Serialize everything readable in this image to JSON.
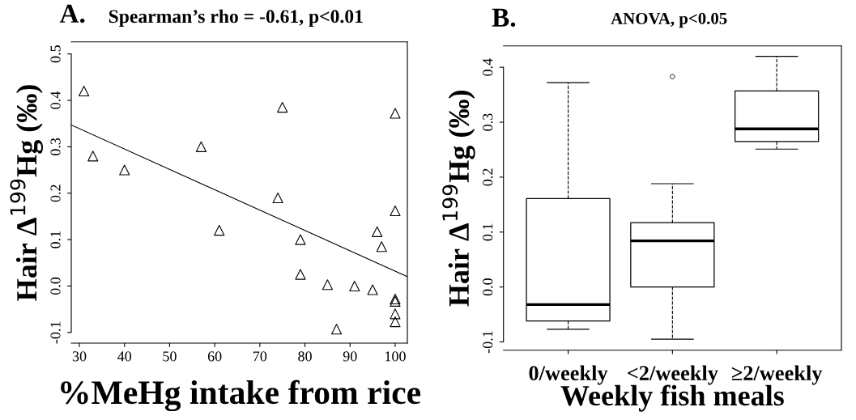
{
  "chart_data": [
    {
      "type": "scatter",
      "title": "A.",
      "subtitle": "Spearman’s rho = -0.61, p<0.01",
      "xlabel": "%MeHg intake from rice",
      "ylabel": "Hair Δ$^{199}$Hg (‰)",
      "xlim": [
        28.2,
        102.7
      ],
      "xticks": [
        30,
        40,
        50,
        60,
        70,
        80,
        90,
        100
      ],
      "ylim": [
        -0.123,
        0.526
      ],
      "yticks": [
        -0.1,
        {
          "value": 0,
          "label": "0.0"
        },
        0.1,
        0.2,
        0.3,
        0.4,
        0.5
      ],
      "grid": false,
      "legend": false,
      "series": [
        {
          "type": "scatter",
          "marker": "triangle",
          "color": "#000000",
          "x": [
            31,
            33,
            40,
            57,
            61,
            74,
            75,
            79,
            79,
            85,
            87,
            91,
            95,
            96,
            97,
            100,
            100,
            100,
            100,
            100,
            100
          ],
          "values": [
            0.42,
            0.28,
            0.25,
            0.3,
            0.12,
            0.19,
            0.385,
            0.1,
            0.025,
            0.003,
            -0.093,
            0.0,
            -0.008,
            0.117,
            0.085,
            0.372,
            0.162,
            -0.028,
            -0.033,
            -0.06,
            -0.077
          ]
        },
        {
          "type": "line",
          "marker": "none",
          "line_style": "solid",
          "color": "#000000",
          "x": [
            28.2,
            102.7
          ],
          "values": [
            0.347,
            0.02
          ]
        }
      ]
    },
    {
      "type": "box",
      "title": "B.",
      "subtitle": "ANOVA, p<0.05",
      "xlabel": "Weekly fish meals",
      "ylabel": "Hair Δ$^{199}$Hg (‰)",
      "categories": [
        "0/weekly",
        "<2/weekly",
        "≥2/weekly"
      ],
      "ylim": [
        -0.115,
        0.439
      ],
      "yticks": [
        -0.1,
        {
          "value": 0,
          "label": "0.0"
        },
        0.1,
        0.2,
        0.3,
        0.4
      ],
      "grid": false,
      "legend": false,
      "boxes": [
        {
          "low": -0.077,
          "q1": -0.062,
          "median": -0.032,
          "q3": 0.161,
          "high": 0.372
        },
        {
          "low": -0.095,
          "q1": 0.0,
          "median": 0.084,
          "q3": 0.117,
          "high": 0.188,
          "outliers": [
            0.383
          ]
        },
        {
          "low": 0.251,
          "q1": 0.265,
          "median": 0.288,
          "q3": 0.357,
          "high": 0.42
        }
      ]
    }
  ]
}
